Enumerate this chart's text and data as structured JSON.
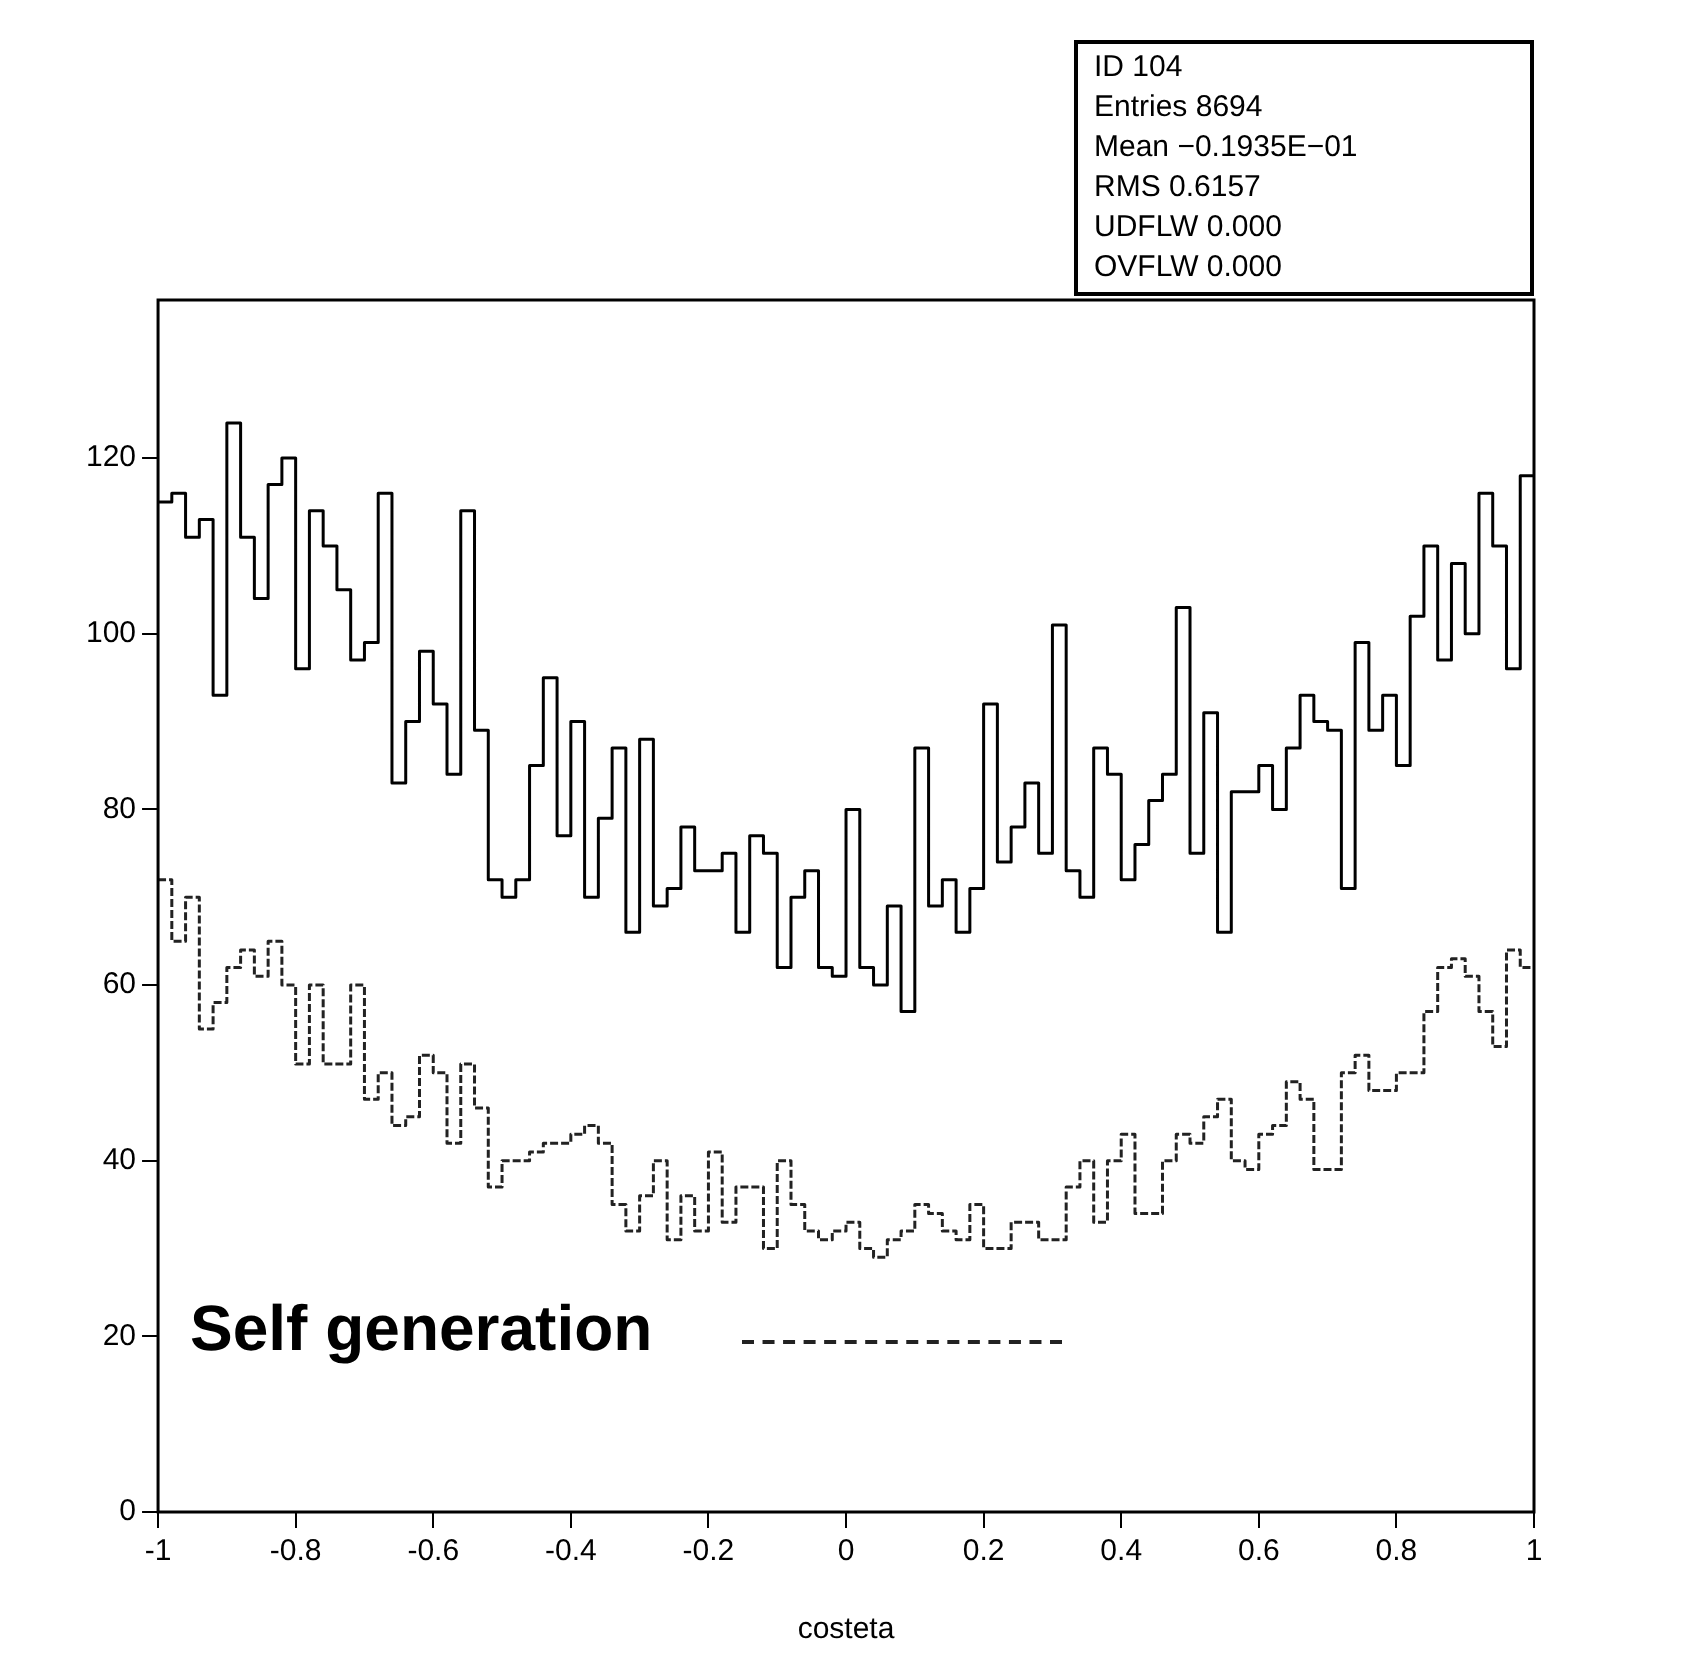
{
  "chart_data": {
    "type": "histogram",
    "xlabel": "costeta",
    "annotations": [
      "ID 104",
      "Entries 8694",
      "Mean −0.1935E−01",
      "RMS 0.6157",
      "UDFLW 0.000",
      "OVFLW 0.000"
    ],
    "bins": [
      -1,
      -0.98,
      -0.96,
      -0.94,
      -0.92,
      -0.9,
      -0.88,
      -0.86,
      -0.84,
      -0.82,
      -0.8,
      -0.78,
      -0.76,
      -0.74,
      -0.72,
      -0.7,
      -0.68,
      -0.66,
      -0.64,
      -0.62,
      -0.6,
      -0.58,
      -0.56,
      -0.54,
      -0.52,
      -0.5,
      -0.48,
      -0.46,
      -0.44,
      -0.42,
      -0.4,
      -0.38,
      -0.36,
      -0.34,
      -0.32,
      -0.3,
      -0.28,
      -0.26,
      -0.24,
      -0.22,
      -0.2,
      -0.18,
      -0.16,
      -0.14,
      -0.12,
      -0.1,
      -0.08,
      -0.06,
      -0.04,
      -0.02,
      0,
      0.02,
      0.04,
      0.06,
      0.08,
      0.1,
      0.12,
      0.14,
      0.16,
      0.18,
      0.2,
      0.22,
      0.24,
      0.26,
      0.28,
      0.3,
      0.32,
      0.34,
      0.36,
      0.38,
      0.4,
      0.42,
      0.44,
      0.46,
      0.48,
      0.5,
      0.52,
      0.54,
      0.56,
      0.58,
      0.6,
      0.62,
      0.64,
      0.66,
      0.68,
      0.7,
      0.72,
      0.74,
      0.76,
      0.78,
      0.8,
      0.82,
      0.84,
      0.86,
      0.88,
      0.9,
      0.92,
      0.94,
      0.96,
      0.98,
      1
    ],
    "series": [
      {
        "color": "#000000",
        "line_style": "solid",
        "values": [
          115,
          116,
          111,
          113,
          93,
          124,
          111,
          104,
          117,
          120,
          96,
          114,
          110,
          105,
          97,
          99,
          116,
          83,
          90,
          98,
          92,
          84,
          114,
          89,
          72,
          70,
          72,
          85,
          95,
          77,
          90,
          70,
          79,
          87,
          66,
          88,
          69,
          71,
          78,
          73,
          73,
          75,
          66,
          77,
          75,
          62,
          70,
          73,
          62,
          61,
          80,
          62,
          60,
          69,
          57,
          87,
          69,
          72,
          66,
          71,
          92,
          74,
          78,
          83,
          75,
          101,
          73,
          70,
          87,
          84,
          72,
          76,
          81,
          84,
          103,
          75,
          91,
          66,
          82,
          82,
          85,
          80,
          87,
          93,
          90,
          89,
          71,
          99,
          89,
          93,
          85,
          102,
          110,
          97,
          108,
          100,
          116,
          110,
          96,
          118
        ]
      },
      {
        "name": "Self generation",
        "color": "#222222",
        "line_style": "dashed",
        "values": [
          72,
          65,
          70,
          55,
          58,
          62,
          64,
          61,
          65,
          60,
          51,
          60,
          51,
          51,
          60,
          47,
          50,
          44,
          45,
          52,
          50,
          42,
          51,
          46,
          37,
          40,
          40,
          41,
          42,
          42,
          43,
          44,
          42,
          35,
          32,
          36,
          40,
          31,
          36,
          32,
          41,
          33,
          37,
          37,
          30,
          40,
          35,
          32,
          31,
          32,
          33,
          30,
          29,
          31,
          32,
          35,
          34,
          32,
          31,
          35,
          30,
          30,
          33,
          33,
          31,
          31,
          37,
          40,
          33,
          40,
          43,
          34,
          34,
          40,
          43,
          42,
          45,
          47,
          40,
          39,
          43,
          44,
          49,
          47,
          39,
          39,
          50,
          52,
          48,
          48,
          50,
          50,
          57,
          62,
          63,
          61,
          57,
          53,
          64,
          62
        ]
      }
    ],
    "xlim": [
      -1,
      1
    ],
    "xticks": [
      -1,
      -0.8,
      -0.6,
      -0.4,
      -0.2,
      0,
      0.2,
      0.4,
      0.6,
      0.8,
      1
    ],
    "ylim": [
      0,
      138
    ],
    "yticks": [
      0,
      20,
      40,
      60,
      80,
      100,
      120
    ],
    "legend": "bottom left"
  }
}
